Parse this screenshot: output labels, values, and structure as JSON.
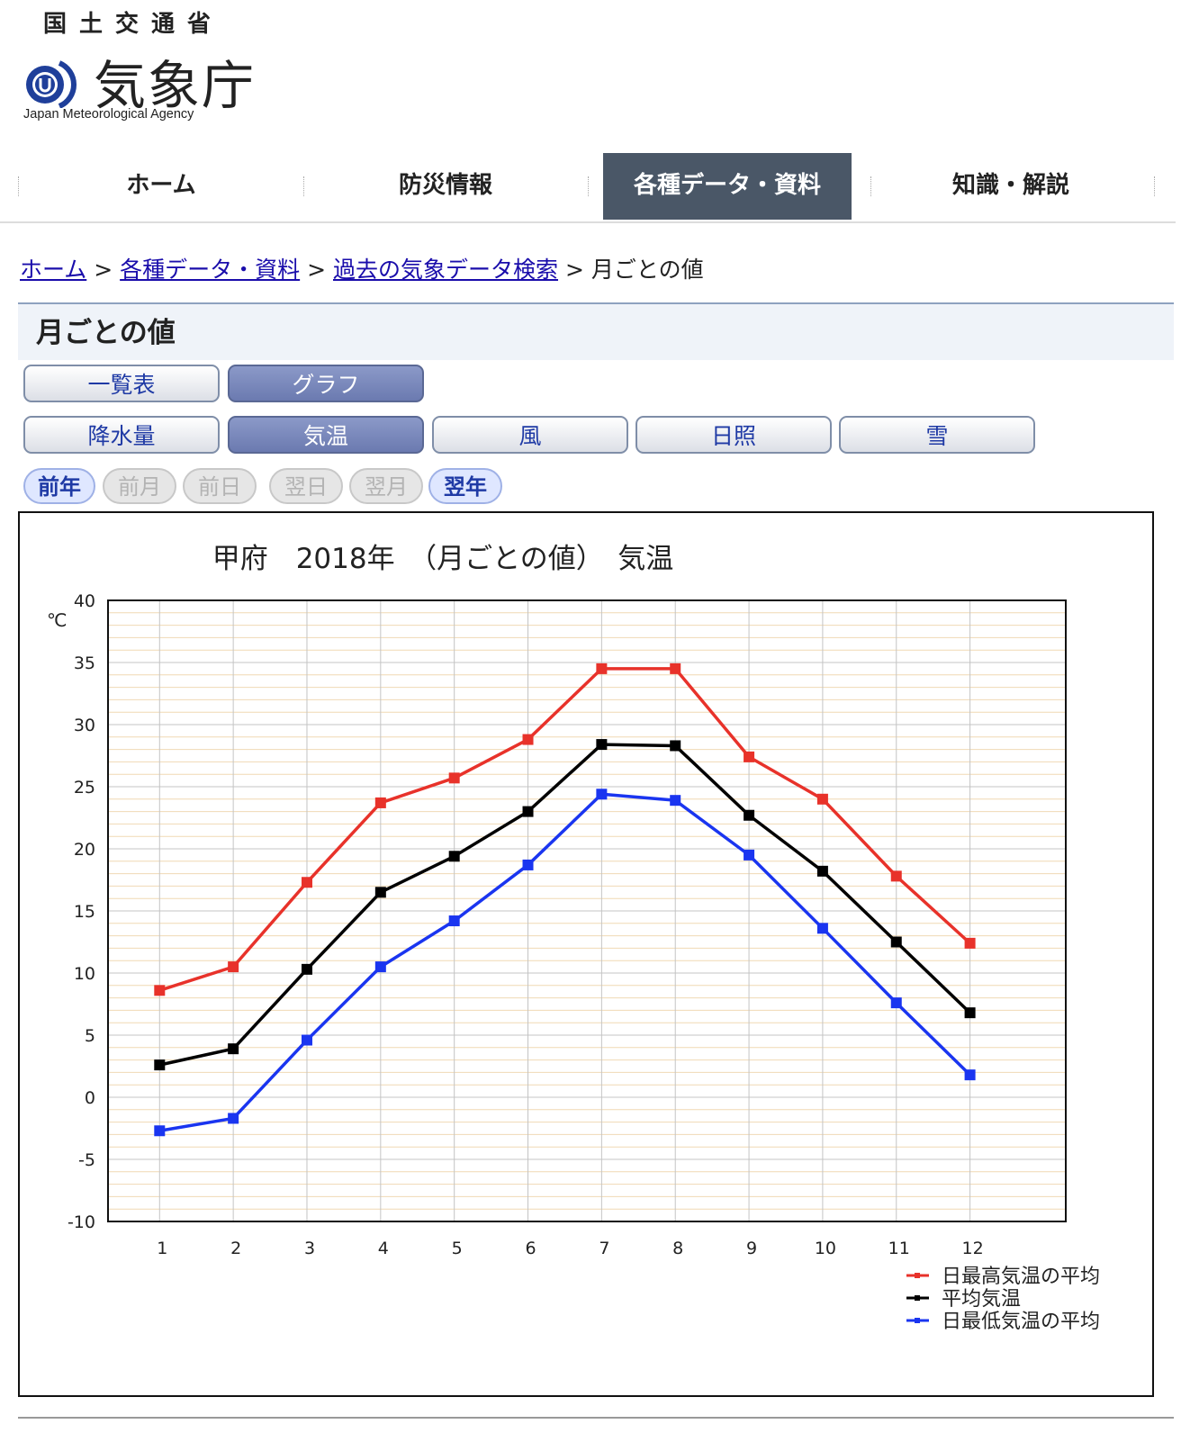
{
  "header": {
    "ministry": "国土交通省",
    "agency_name": "気象庁",
    "agency_en": "Japan Meteorological Agency",
    "logo_icon": "jma-logo-icon"
  },
  "nav": {
    "items": [
      {
        "label": "ホーム",
        "active": false
      },
      {
        "label": "防災情報",
        "active": false
      },
      {
        "label": "各種データ・資料",
        "active": true
      },
      {
        "label": "知識・解説",
        "active": false
      }
    ],
    "active_color": "#4a5767"
  },
  "breadcrumb": {
    "links": [
      "ホーム",
      "各種データ・資料",
      "過去の気象データ検索"
    ],
    "separator": ">",
    "current": "月ごとの値"
  },
  "page_title": "月ごとの値",
  "view_buttons": [
    {
      "label": "一覧表",
      "selected": false
    },
    {
      "label": "グラフ",
      "selected": true
    }
  ],
  "element_buttons": [
    {
      "label": "降水量",
      "selected": false
    },
    {
      "label": "気温",
      "selected": true
    },
    {
      "label": "風",
      "selected": false
    },
    {
      "label": "日照",
      "selected": false
    },
    {
      "label": "雪",
      "selected": false
    }
  ],
  "period_nav": [
    {
      "label": "前年",
      "enabled": true
    },
    {
      "label": "前月",
      "enabled": false
    },
    {
      "label": "前日",
      "enabled": false
    },
    {
      "label": "翌日",
      "enabled": false
    },
    {
      "label": "翌月",
      "enabled": false
    },
    {
      "label": "翌年",
      "enabled": true
    }
  ],
  "chart_data": {
    "type": "line",
    "title": "甲府　2018年　（月ごとの値）　気温",
    "ylabel": "℃",
    "xlabel": "",
    "x": [
      1,
      2,
      3,
      4,
      5,
      6,
      7,
      8,
      9,
      10,
      11,
      12
    ],
    "ylim": [
      -10,
      40
    ],
    "yticks": [
      -10,
      -5,
      0,
      5,
      10,
      15,
      20,
      25,
      30,
      35,
      40
    ],
    "grid": true,
    "legend_position": "bottom-right",
    "series": [
      {
        "name": "日最高気温の平均",
        "color": "#e8322a",
        "values": [
          8.6,
          10.5,
          17.3,
          23.7,
          25.7,
          28.8,
          34.5,
          34.5,
          27.4,
          24.0,
          17.8,
          12.4
        ]
      },
      {
        "name": "平均気温",
        "color": "#000000",
        "values": [
          2.6,
          3.9,
          10.3,
          16.5,
          19.4,
          23.0,
          28.4,
          28.3,
          22.7,
          18.2,
          12.5,
          6.8
        ]
      },
      {
        "name": "日最低気温の平均",
        "color": "#1a35f0",
        "values": [
          -2.7,
          -1.7,
          4.6,
          10.5,
          14.2,
          18.7,
          24.4,
          23.9,
          19.5,
          13.6,
          7.6,
          1.8
        ]
      }
    ]
  }
}
